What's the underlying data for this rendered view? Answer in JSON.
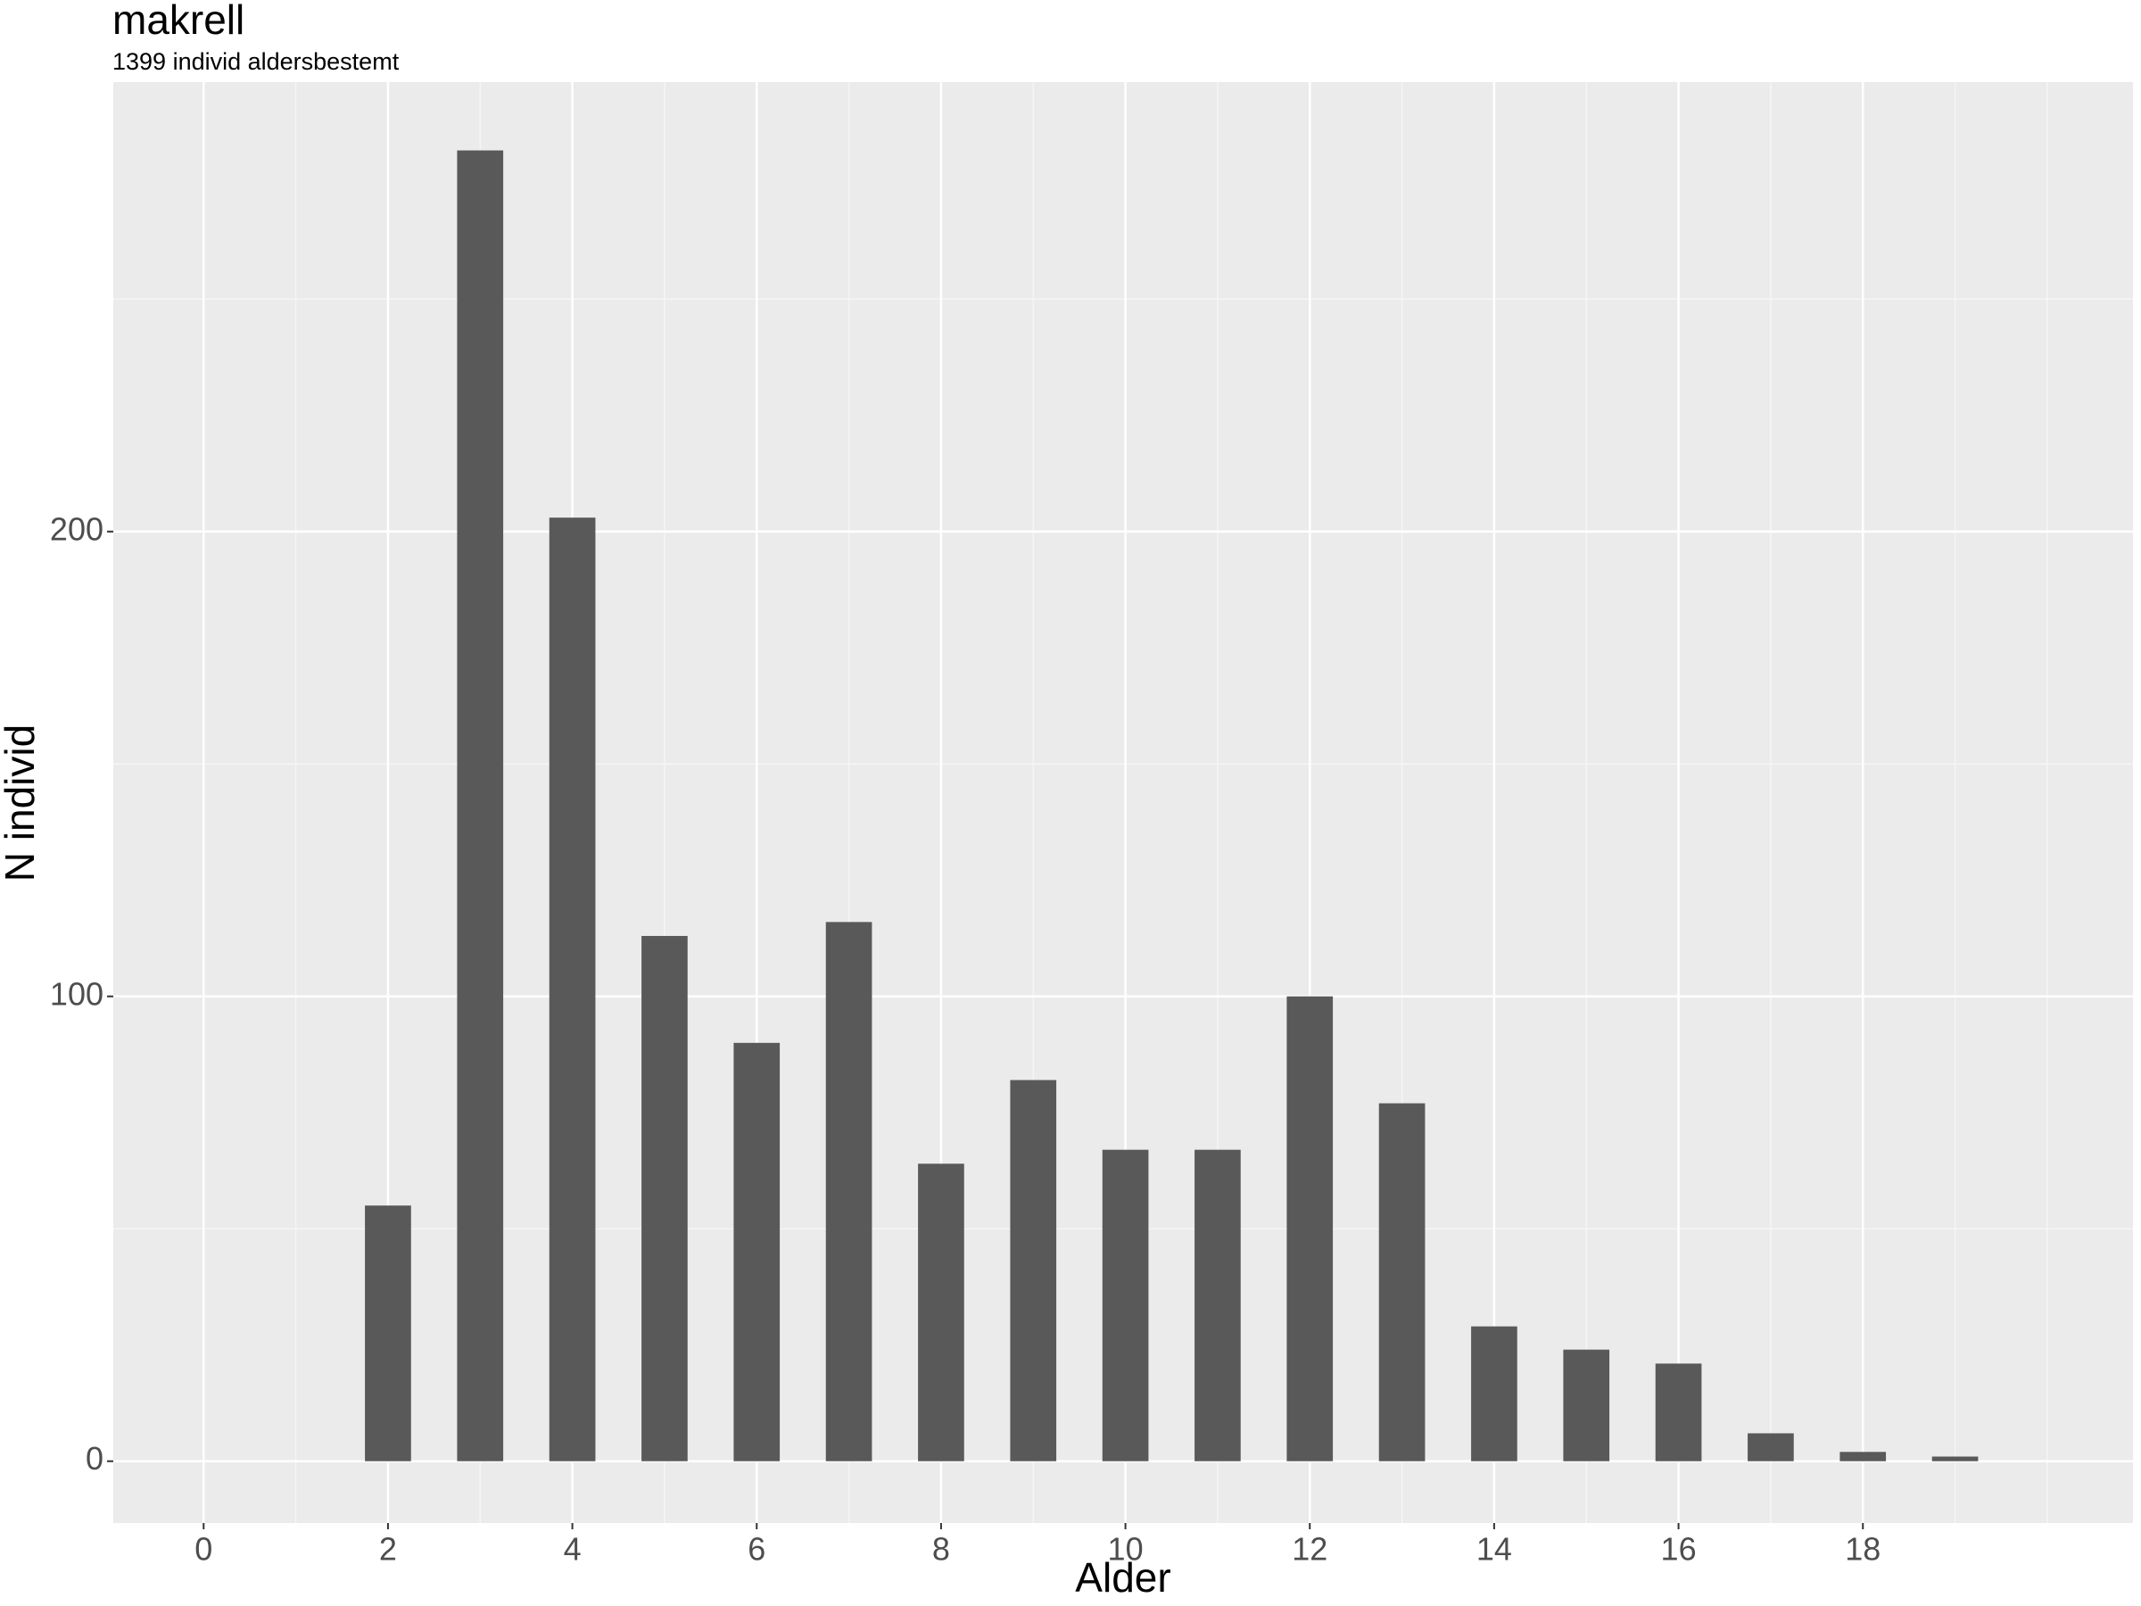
{
  "chart_data": {
    "type": "bar",
    "title": "makrell",
    "subtitle": "1399 individ aldersbestemt",
    "x_label": "Alder",
    "y_label": "N individ",
    "x": [
      2,
      3,
      4,
      5,
      6,
      7,
      8,
      9,
      10,
      11,
      12,
      13,
      14,
      15,
      16,
      17,
      18,
      19
    ],
    "values": [
      55,
      282,
      203,
      113,
      90,
      116,
      64,
      82,
      67,
      67,
      100,
      77,
      29,
      24,
      21,
      6,
      2,
      1
    ],
    "bar_width": 0.5,
    "color": "#595959",
    "xlim": [
      -0.98,
      20.93
    ],
    "xticks": [
      0,
      2,
      4,
      6,
      8,
      10,
      12,
      14,
      16,
      18
    ],
    "xminor": [
      1,
      3,
      5,
      7,
      9,
      11,
      13,
      15,
      17,
      19,
      20
    ],
    "ylim": [
      -13.3,
      296.7
    ],
    "yticks": [
      0,
      100,
      200
    ],
    "yminor": [
      50,
      150,
      250
    ],
    "grid": true
  }
}
